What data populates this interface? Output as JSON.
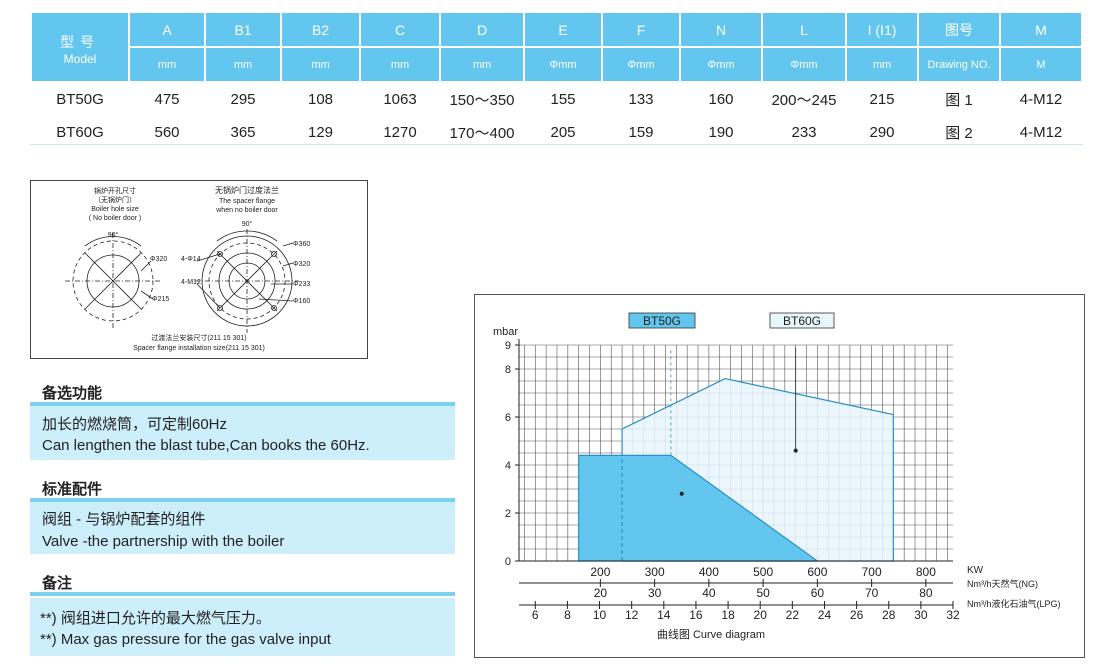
{
  "table": {
    "model_header_zh": "型号",
    "model_header_en": "Model",
    "columns": [
      "A",
      "B1",
      "B2",
      "C",
      "D",
      "E",
      "F",
      "N",
      "L",
      "I (I1)",
      "图号",
      "M"
    ],
    "units": [
      "mm",
      "mm",
      "mm",
      "mm",
      "mm",
      "Φmm",
      "Φmm",
      "Φmm",
      "Φmm",
      "mm",
      "Drawing NO.",
      "M"
    ],
    "rows": [
      {
        "model": "BT50G",
        "cells": [
          "475",
          "295",
          "108",
          "1063",
          "150～350",
          "155",
          "133",
          "160",
          "200～245",
          "215",
          "图 1",
          "4-M12"
        ]
      },
      {
        "model": "BT60G",
        "cells": [
          "560",
          "365",
          "129",
          "1270",
          "170～400",
          "205",
          "159",
          "190",
          "233",
          "290",
          "图 2",
          "4-M12"
        ]
      }
    ]
  },
  "flange": {
    "left_title": [
      "锅炉开孔尺寸",
      "（无锅炉门）",
      "Boiler hole size",
      "( No boiler door )"
    ],
    "right_title": [
      "无锅炉门过度法兰",
      "The spacer flange",
      "when no boiler door"
    ],
    "angle_label": "90°",
    "left_labels": [
      "Φ320",
      "Φ215"
    ],
    "right_labels": [
      "Φ360",
      "Φ320",
      "Φ233",
      "Φ160",
      "4-Φ14",
      "4-M12"
    ],
    "caption_zh": "过渡法兰安装尺寸(211 15 301)",
    "caption_en": "Spacer flange installation size(211 15 301)"
  },
  "sections": [
    {
      "title": "备选功能",
      "lines": [
        "加长的燃烧筒，可定制60Hz",
        "Can lengthen the blast tube,Can books the 60Hz."
      ]
    },
    {
      "title": "标准配件",
      "lines": [
        "阀组 - 与锅炉配套的组件",
        "Valve -the partnership with the boiler"
      ]
    },
    {
      "title": "备注",
      "lines": [
        "**) 阀组进口允许的最大燃气压力。",
        "**) Max gas pressure for the gas valve input"
      ]
    }
  ],
  "chart_data": {
    "type": "area",
    "title": "曲线图  Curve diagram",
    "ylabel": "mbar",
    "xlabel": "KW",
    "ylim": [
      0,
      9
    ],
    "xlim": [
      50,
      850
    ],
    "y_ticks": [
      "0",
      "2",
      "4",
      "6",
      "8",
      "9"
    ],
    "x_ticks": [
      "200",
      "300",
      "400",
      "500",
      "600",
      "700",
      "800"
    ],
    "ng_label": "Nm³/h天然气(NG)",
    "ng_ticks": [
      "20",
      "30",
      "40",
      "50",
      "60",
      "70",
      "80"
    ],
    "lpg_label": "Nm³/h液化石油气(LPG)",
    "lpg_ticks": [
      "6",
      "8",
      "10",
      "12",
      "14",
      "16",
      "18",
      "20",
      "22",
      "24",
      "26",
      "28",
      "30",
      "32"
    ],
    "grid": true,
    "series": [
      {
        "name": "BT50G",
        "color": "#63c6ee",
        "points": [
          [
            160,
            0
          ],
          [
            160,
            4.4
          ],
          [
            330,
            4.4
          ],
          [
            600,
            0
          ]
        ]
      },
      {
        "name": "BT60G",
        "color": "#e8f6fd",
        "points": [
          [
            240,
            0
          ],
          [
            240,
            5.5
          ],
          [
            430,
            7.6
          ],
          [
            740,
            6.1
          ],
          [
            740,
            0
          ]
        ]
      }
    ]
  }
}
